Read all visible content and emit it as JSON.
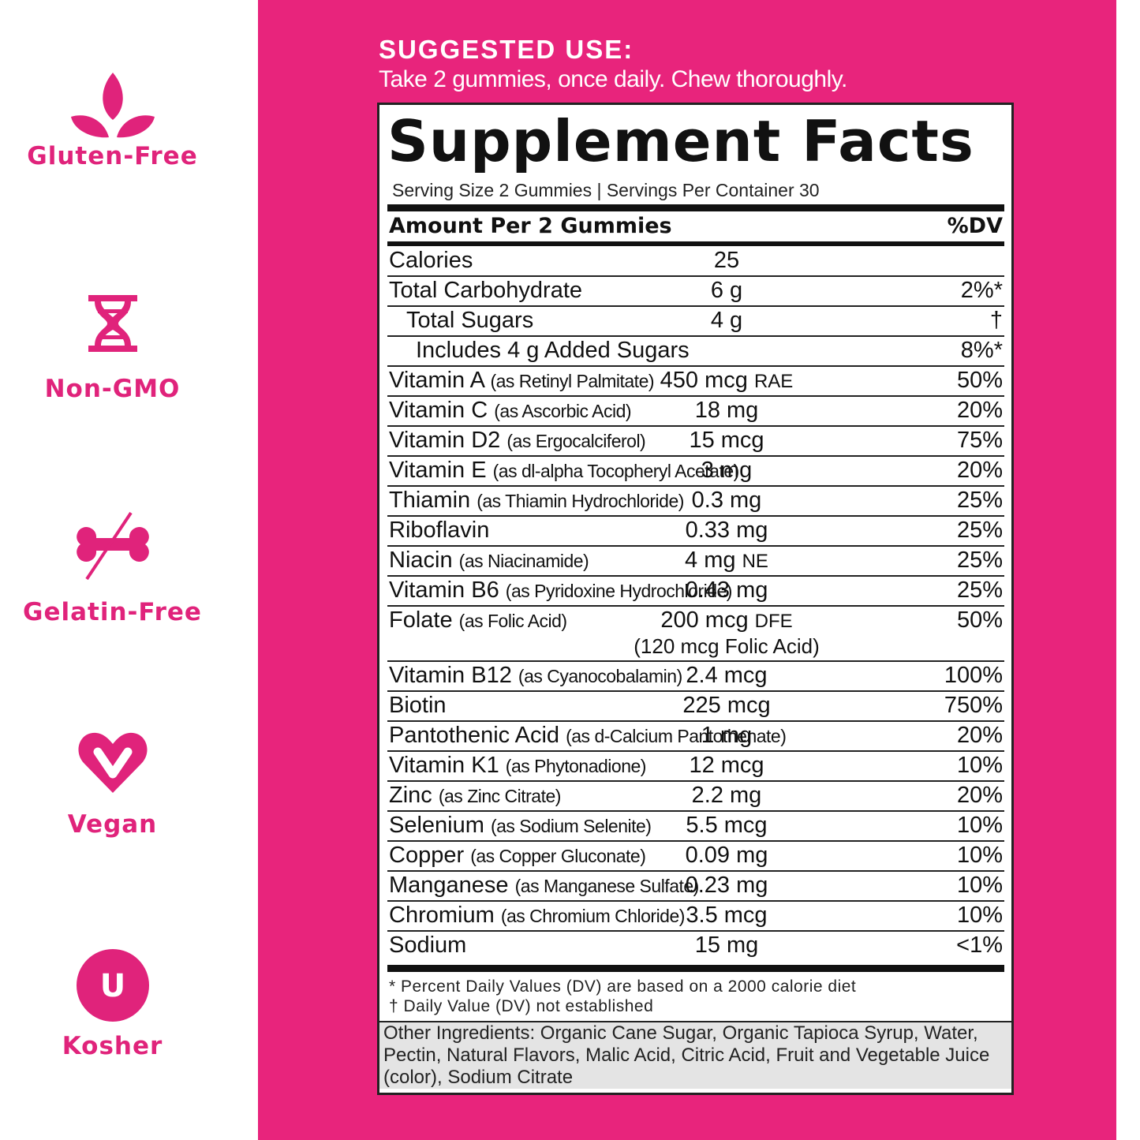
{
  "badges": [
    {
      "label": "Gluten-Free"
    },
    {
      "label": "Non-GMO"
    },
    {
      "label": "Gelatin-Free"
    },
    {
      "label": "Vegan"
    },
    {
      "label": "Kosher",
      "symbol": "U"
    }
  ],
  "suggested_use": {
    "title": "SUGGESTED USE:",
    "text": "Take 2 gummies, once daily. Chew thoroughly."
  },
  "facts": {
    "title": "Supplement Facts",
    "serving": "Serving Size 2 Gummies | Servings Per Container 30",
    "header": {
      "amount": "Amount Per 2 Gummies",
      "dv": "%DV"
    },
    "rows": [
      {
        "name": "Calories",
        "amount": "25"
      },
      {
        "name": "Total Carbohydrate",
        "amount": "6 g",
        "dv": "2%*"
      },
      {
        "name": "Total Sugars",
        "amount": "4 g",
        "dv": "†"
      },
      {
        "name": "Includes 4 g Added Sugars",
        "dv": "8%*"
      },
      {
        "name": "Vitamin A",
        "source": "(as Retinyl Palmitate)",
        "amount": "450 mcg",
        "unit": "RAE",
        "dv": "50%"
      },
      {
        "name": "Vitamin C",
        "source": "(as Ascorbic Acid)",
        "amount": "18 mg",
        "dv": "20%"
      },
      {
        "name": "Vitamin D2",
        "source": "(as Ergocalciferol)",
        "amount": "15 mcg",
        "dv": "75%"
      },
      {
        "name": "Vitamin E",
        "source": "(as dl-alpha Tocopheryl Acetate)",
        "amount": "3 mg",
        "dv": "20%"
      },
      {
        "name": "Thiamin",
        "source": "(as Thiamin Hydrochloride)",
        "amount": "0.3 mg",
        "dv": "25%"
      },
      {
        "name": "Riboflavin",
        "amount": "0.33 mg",
        "dv": "25%"
      },
      {
        "name": "Niacin",
        "source": "(as Niacinamide)",
        "amount": "4 mg",
        "unit": "NE",
        "dv": "25%"
      },
      {
        "name": "Vitamin B6",
        "source": "(as Pyridoxine Hydrochloride)",
        "amount": "0.43 mg",
        "dv": "25%"
      },
      {
        "name": "Folate",
        "source": "(as Folic Acid)",
        "amount": "200 mcg",
        "unit": "DFE",
        "amount_note": "(120 mcg Folic Acid)",
        "dv": "50%"
      },
      {
        "name": "Vitamin B12",
        "source": "(as Cyanocobalamin)",
        "amount": "2.4 mcg",
        "dv": "100%"
      },
      {
        "name": "Biotin",
        "amount": "225 mcg",
        "dv": "750%"
      },
      {
        "name": "Pantothenic Acid",
        "source": "(as d-Calcium Pantothenate)",
        "amount": "1 mg",
        "dv": "20%"
      },
      {
        "name": "Vitamin K1",
        "source": "(as Phytonadione)",
        "amount": "12 mcg",
        "dv": "10%"
      },
      {
        "name": "Zinc",
        "source": "(as Zinc Citrate)",
        "amount": "2.2 mg",
        "dv": "20%"
      },
      {
        "name": "Selenium",
        "source": "(as Sodium Selenite)",
        "amount": "5.5 mcg",
        "dv": "10%"
      },
      {
        "name": "Copper",
        "source": "(as Copper Gluconate)",
        "amount": "0.09 mg",
        "dv": "10%"
      },
      {
        "name": "Manganese",
        "source": "(as Manganese Sulfate)",
        "amount": "0.23 mg",
        "dv": "10%"
      },
      {
        "name": "Chromium",
        "source": "(as Chromium Chloride)",
        "amount": "3.5 mcg",
        "dv": "10%"
      },
      {
        "name": "Sodium",
        "amount": "15 mg",
        "dv": "<1%"
      }
    ],
    "footnotes": [
      "* Percent Daily Values (DV) are based on a 2000 calorie diet",
      "† Daily Value (DV) not established"
    ],
    "other_ingredients": "Other Ingredients: Organic Cane Sugar, Organic Tapioca Syrup, Water, Pectin, Natural Flavors, Malic Acid, Citric Acid, Fruit and Vegetable Juice (color), Sodium Citrate"
  }
}
